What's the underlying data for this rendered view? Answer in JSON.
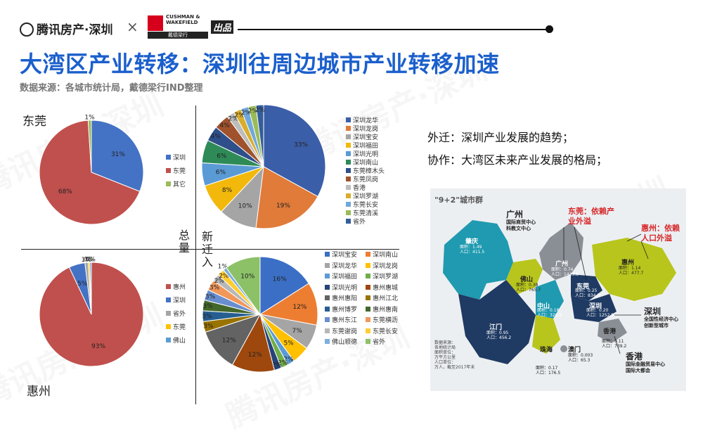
{
  "header": {
    "brand": "腾讯房产·深圳",
    "cross": "×",
    "partner_line1": "CUSHMAN &",
    "partner_line2": "WAKEFIELD",
    "partner_cn": "戴德梁行",
    "badge": "出品"
  },
  "page": {
    "title": "大湾区产业转移：深圳往周边城市产业转移加速",
    "source": "数据来源：各城市统计局，戴德梁行IND整理"
  },
  "watermark": "腾讯房产·深圳",
  "labels": {
    "dongguan": "东莞",
    "huizhou": "惠州",
    "total": "总量",
    "new_move": "新迁入"
  },
  "notes": {
    "line1": "外迁：深圳产业发展的趋势；",
    "line2": "协作：大湾区未来产业发展的格局；"
  },
  "colors": {
    "title_blue": "#1b5fcc",
    "blue": "#4472c4",
    "red": "#c0504d",
    "green": "#9bbb59",
    "orange": "#ed7d31",
    "gray": "#a5a5a5",
    "yellow": "#ffc000",
    "teal": "#22a6b3",
    "olive_map": "#b5c41d",
    "dark_navy": "#1f3a63",
    "red_text": "#d62728"
  },
  "chart_data": [
    {
      "id": "dongguan-total",
      "type": "pie",
      "title": "东莞",
      "labels": [
        "深圳",
        "东莞",
        "其它"
      ],
      "values": [
        31,
        68,
        1
      ],
      "display": [
        "31%",
        "68%",
        "1%"
      ],
      "colors": [
        "#4472c4",
        "#c0504d",
        "#9bbb59"
      ],
      "legend_position": "right"
    },
    {
      "id": "huizhou-total",
      "type": "pie",
      "title": "惠州",
      "labels": [
        "惠州",
        "深圳",
        "省外",
        "东莞",
        "佛山"
      ],
      "values": [
        93,
        5,
        1,
        0.5,
        0.5
      ],
      "display": [
        "93%",
        "5%",
        "1%",
        "0%",
        "0%"
      ],
      "colors": [
        "#c0504d",
        "#4472c4",
        "#a5a5a5",
        "#ffc000",
        "#5b9bd5"
      ],
      "legend_position": "left"
    },
    {
      "id": "dongguan-new",
      "type": "pie",
      "title": "",
      "labels": [
        "深圳龙华",
        "深圳龙岗",
        "深圳宝安",
        "深圳福田",
        "深圳光明",
        "深圳南山",
        "东莞樟木头",
        "东莞凤岗",
        "香港",
        "深圳罗湖",
        "东莞长安",
        "东莞清溪",
        "省外"
      ],
      "values": [
        33,
        19,
        10,
        8,
        6,
        6,
        4,
        4,
        2,
        2,
        2,
        2,
        2
      ],
      "display": [
        "33%",
        "19%",
        "10%",
        "8%",
        "6%",
        "6%",
        "4%",
        "4%",
        "2%",
        "2%",
        "2%",
        "2%",
        "2%"
      ],
      "colors": [
        "#3b5ea8",
        "#e07b39",
        "#a5a5a5",
        "#f2b90c",
        "#5b9bd5",
        "#2e8b57",
        "#2f4f8a",
        "#a0522d",
        "#bdbdbd",
        "#d9ad2b",
        "#6fa8dc",
        "#9bbb59",
        "#335e9a"
      ],
      "legend_position": "right"
    },
    {
      "id": "huizhou-new",
      "type": "pie",
      "title": "",
      "labels": [
        "深圳宝安",
        "深圳南山",
        "深圳龙华",
        "深圳龙岗",
        "深圳福田",
        "深圳罗湖",
        "深圳光明",
        "惠州惠城",
        "惠州惠阳",
        "惠州江北",
        "惠州博罗",
        "惠州惠南",
        "惠州东江",
        "东莞横沥",
        "东莞谢岗",
        "东莞长安",
        "佛山顺德",
        "省外"
      ],
      "values": [
        16,
        12,
        7,
        5,
        2,
        2,
        2,
        12,
        12,
        3,
        3,
        3,
        3,
        3,
        2,
        2,
        1,
        10
      ],
      "display": [
        "16%",
        "12%",
        "7%",
        "5%",
        "2%",
        "2%",
        "2%",
        "12%",
        "12%",
        "3%",
        "3%",
        "3%",
        "3%",
        "3%",
        "2%",
        "2%",
        "1%",
        "10%"
      ],
      "colors": [
        "#3b6fc6",
        "#ed7d31",
        "#a5a5a5",
        "#ffc000",
        "#5b9bd5",
        "#70ad47",
        "#264478",
        "#9e480e",
        "#636363",
        "#997300",
        "#255e91",
        "#43682b",
        "#698ed0",
        "#f1975a",
        "#b7b7b7",
        "#ffcd33",
        "#7cafdd",
        "#8cc168"
      ],
      "legend_position": "right"
    }
  ],
  "map": {
    "title": "\"9+2\"城市群",
    "callout_dongguan": "东莞：依赖产\n业外溢",
    "callout_huizhou": "惠州：依赖\n人口外溢",
    "label_guangzhou_hub": "广州",
    "guangzhou_hub_sub": "国际商贸中心\n科教文中心",
    "label_shenzhen": "深圳",
    "shenzhen_sub": "全国性经济中心\n创新型城市",
    "label_hongkong": "香港",
    "hongkong_sub": "国际金融贸易中心\n国际大都会",
    "cities": [
      "肇庆",
      "广州",
      "佛山",
      "东莞",
      "惠州",
      "中山",
      "深圳",
      "江门",
      "珠海",
      "澳门",
      "香港"
    ],
    "legend_note": "数据来源：\n各地统计局\n面积单位：\n万平方公里\n人口单位：\n万人，截至2017年末",
    "stat_zhaoqing": "面积：1.49\n人口：411.5",
    "stat_guangzhou": "面积：0.74\n人口：1449.8",
    "stat_foshan": "面积：0.38\n人口：765.7",
    "stat_dongguan": "面积：0.25\n人口：834.3",
    "stat_huizhou": "面积：1.14\n人口：477.7",
    "stat_zhongshan": "面积：0.18\n人口：326.0",
    "stat_shenzhen": "面积：0.20\n人口：1252.8",
    "stat_jiangmen": "面积：0.95\n人口：456.2",
    "stat_zhuhai": "面积：0.17\n人口：176.5",
    "stat_macau": "面积：0.003\n人口：65.3",
    "stat_hongkong": "面积：0.11\n人口：739.2"
  }
}
